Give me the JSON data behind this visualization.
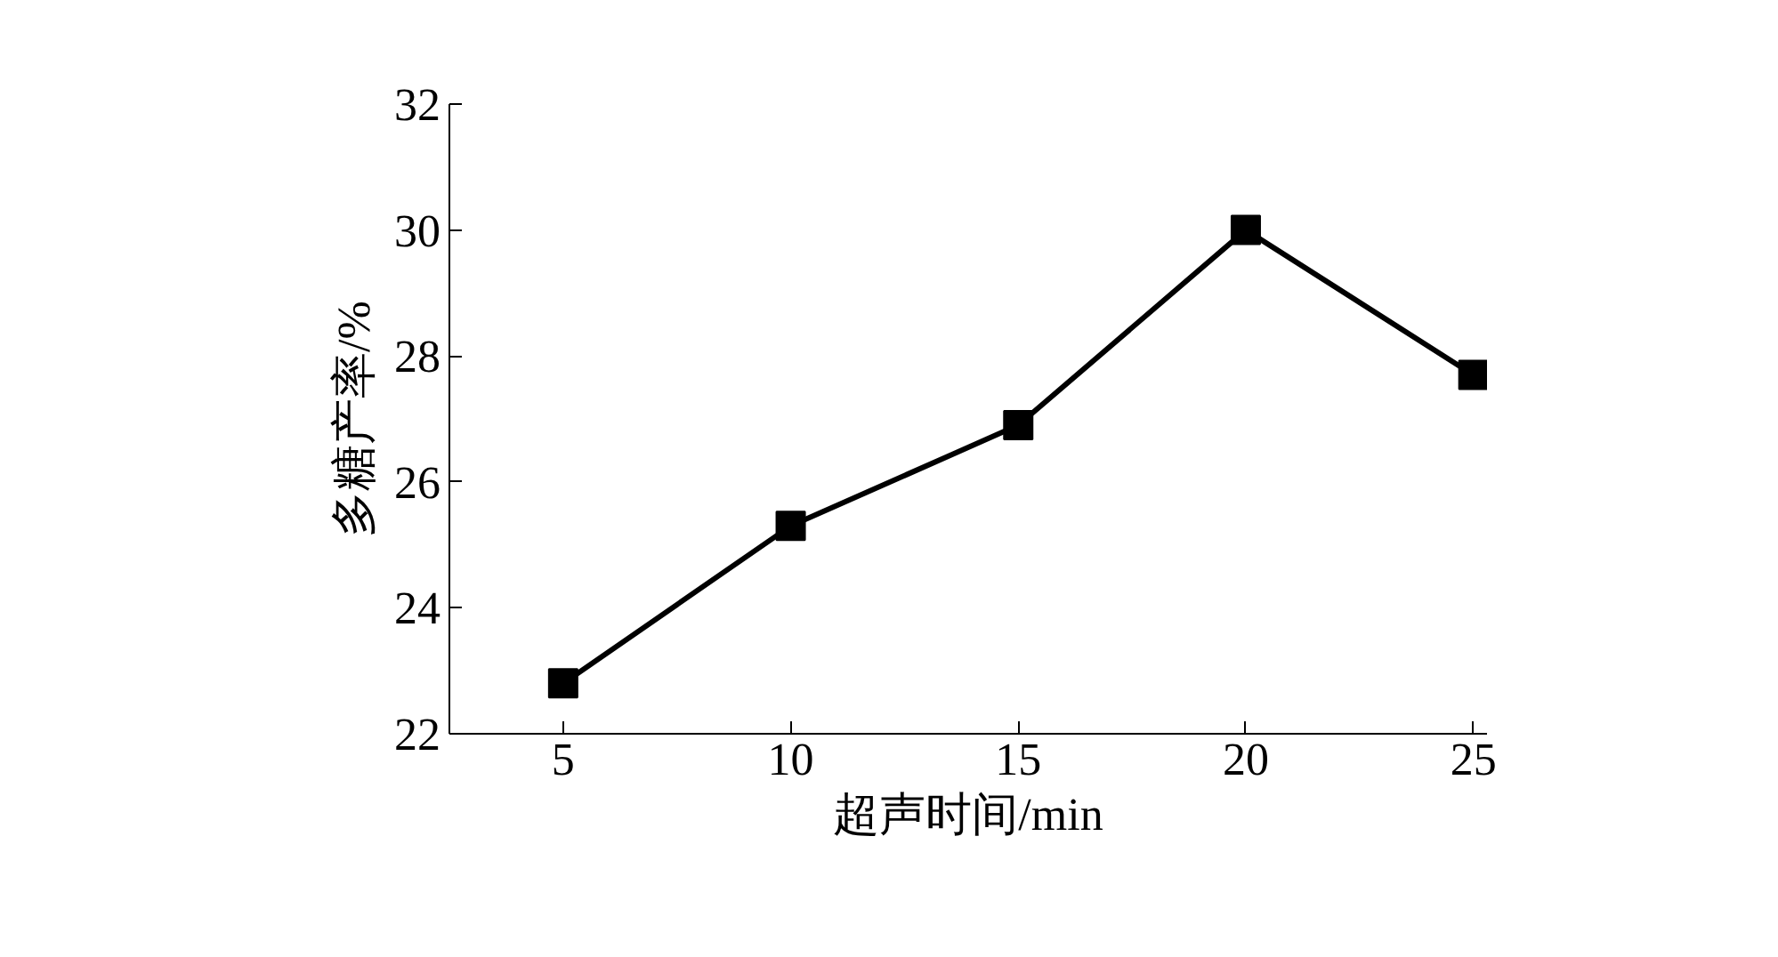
{
  "chart_data": {
    "type": "line",
    "xlabel": "超声时间/min",
    "ylabel": "多糖产率/%",
    "x": [
      5,
      10,
      15,
      20,
      25
    ],
    "series": [
      {
        "color": "#000000",
        "values": [
          22.8,
          25.3,
          26.9,
          30.0,
          27.7
        ]
      }
    ],
    "xlim": [
      2.5,
      25.3
    ],
    "xticks": [
      5,
      10,
      15,
      20,
      25
    ],
    "ylim": [
      22,
      32
    ],
    "yticks": [
      22,
      24,
      26,
      28,
      30,
      32
    ],
    "grid": false,
    "marker": "square",
    "line_style": "solid"
  }
}
